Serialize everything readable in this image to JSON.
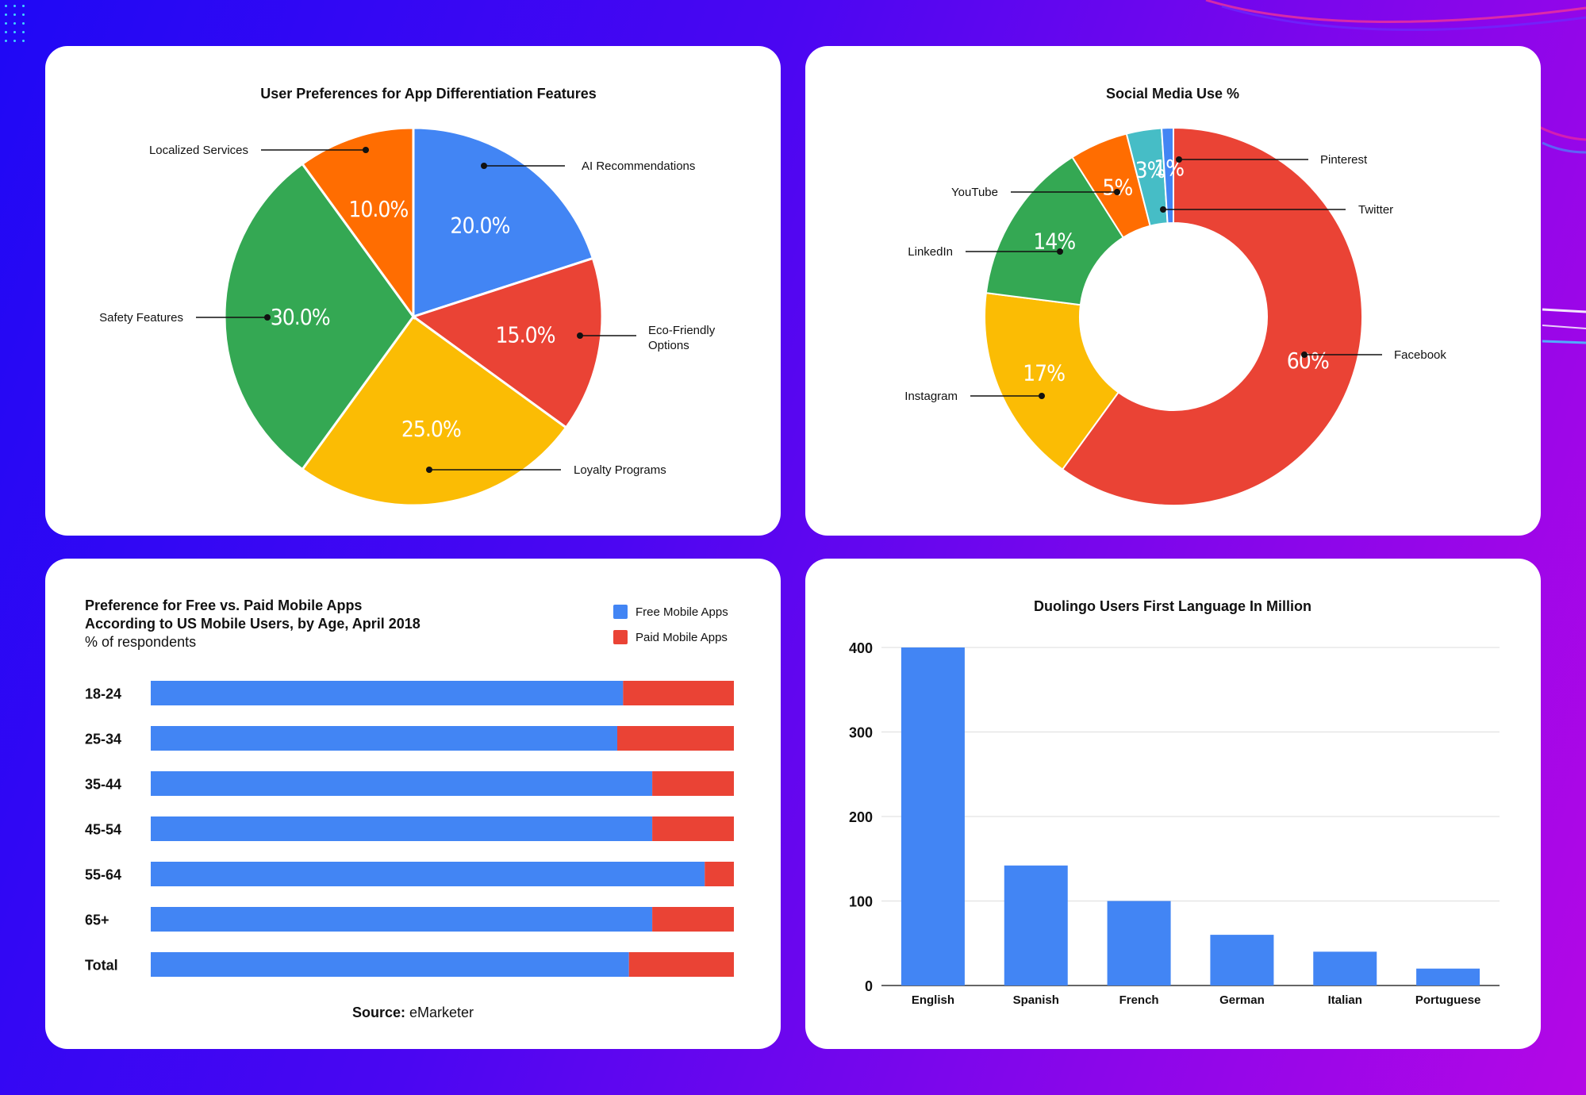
{
  "charts": [
    {
      "type": "pie",
      "title": "User Preferences for App Differentiation Features",
      "slices": [
        {
          "label": "AI Recommendations",
          "value": 20.0,
          "display": "20.0%",
          "color": "#4285f4"
        },
        {
          "label": "Eco-Friendly Options",
          "value": 15.0,
          "display": "15.0%",
          "color": "#ea4335"
        },
        {
          "label": "Loyalty Programs",
          "value": 25.0,
          "display": "25.0%",
          "color": "#fbbc04"
        },
        {
          "label": "Safety Features",
          "value": 30.0,
          "display": "30.0%",
          "color": "#34a853"
        },
        {
          "label": "Localized Services",
          "value": 10.0,
          "display": "10.0%",
          "color": "#ff6d01"
        }
      ]
    },
    {
      "type": "pie",
      "subtype": "donut",
      "title": "Social Media Use %",
      "slices": [
        {
          "label": "Facebook",
          "value": 60,
          "display": "60%",
          "color": "#ea4335"
        },
        {
          "label": "Instagram",
          "value": 17,
          "display": "17%",
          "color": "#fbbc04"
        },
        {
          "label": "LinkedIn",
          "value": 14,
          "display": "14%",
          "color": "#34a853"
        },
        {
          "label": "YouTube",
          "value": 5,
          "display": "5%",
          "color": "#ff6d01"
        },
        {
          "label": "Twitter",
          "value": 3,
          "display": "3%",
          "color": "#46bdc6"
        },
        {
          "label": "Pinterest",
          "value": 1,
          "display": "1%",
          "color": "#4285f4"
        }
      ]
    },
    {
      "type": "bar",
      "orientation": "horizontal",
      "stacked": true,
      "title_lines": [
        "Preference for Free vs. Paid Mobile Apps",
        "According to US Mobile Users, by Age, April 2018"
      ],
      "subtitle": "% of respondents",
      "categories": [
        "18-24",
        "25-34",
        "35-44",
        "45-54",
        "55-64",
        "65+",
        "Total"
      ],
      "series": [
        {
          "name": "Free Mobile Apps",
          "color": "#4285f4",
          "values": [
            81,
            80,
            86,
            86,
            95,
            86,
            82
          ]
        },
        {
          "name": "Paid Mobile Apps",
          "color": "#ea4335",
          "values": [
            19,
            20,
            14,
            14,
            5,
            14,
            18
          ]
        }
      ],
      "xlim": [
        0,
        100
      ],
      "legend": "top-right",
      "source_label": "Source:",
      "source": "eMarketer"
    },
    {
      "type": "bar",
      "orientation": "vertical",
      "title": "Duolingo Users First Language In Million",
      "categories": [
        "English",
        "Spanish",
        "French",
        "German",
        "Italian",
        "Portuguese"
      ],
      "values": [
        400,
        142,
        100,
        60,
        40,
        20
      ],
      "color": "#4285f4",
      "ylim": [
        0,
        400
      ],
      "yticks": [
        0,
        100,
        200,
        300,
        400
      ],
      "grid": true
    }
  ],
  "chart_data": [
    {
      "type": "pie",
      "title": "User Preferences for App Differentiation Features",
      "labels": [
        "AI Recommendations",
        "Eco-Friendly Options",
        "Loyalty Programs",
        "Safety Features",
        "Localized Services"
      ],
      "values": [
        20.0,
        15.0,
        25.0,
        30.0,
        10.0
      ]
    },
    {
      "type": "pie",
      "title": "Social Media Use %",
      "labels": [
        "Facebook",
        "Instagram",
        "LinkedIn",
        "YouTube",
        "Twitter",
        "Pinterest"
      ],
      "values": [
        60,
        17,
        14,
        5,
        3,
        1
      ]
    },
    {
      "type": "bar",
      "title": "Preference for Free vs. Paid Mobile Apps According to US Mobile Users, by Age, April 2018",
      "categories": [
        "18-24",
        "25-34",
        "35-44",
        "45-54",
        "55-64",
        "65+",
        "Total"
      ],
      "series": [
        {
          "name": "Free Mobile Apps",
          "values": [
            81,
            80,
            86,
            86,
            95,
            86,
            82
          ]
        },
        {
          "name": "Paid Mobile Apps",
          "values": [
            19,
            20,
            14,
            14,
            5,
            14,
            18
          ]
        }
      ],
      "xlim": [
        0,
        100
      ]
    },
    {
      "type": "bar",
      "title": "Duolingo Users First Language In Million",
      "categories": [
        "English",
        "Spanish",
        "French",
        "German",
        "Italian",
        "Portuguese"
      ],
      "values": [
        400,
        142,
        100,
        60,
        40,
        20
      ],
      "ylim": [
        0,
        400
      ]
    }
  ]
}
